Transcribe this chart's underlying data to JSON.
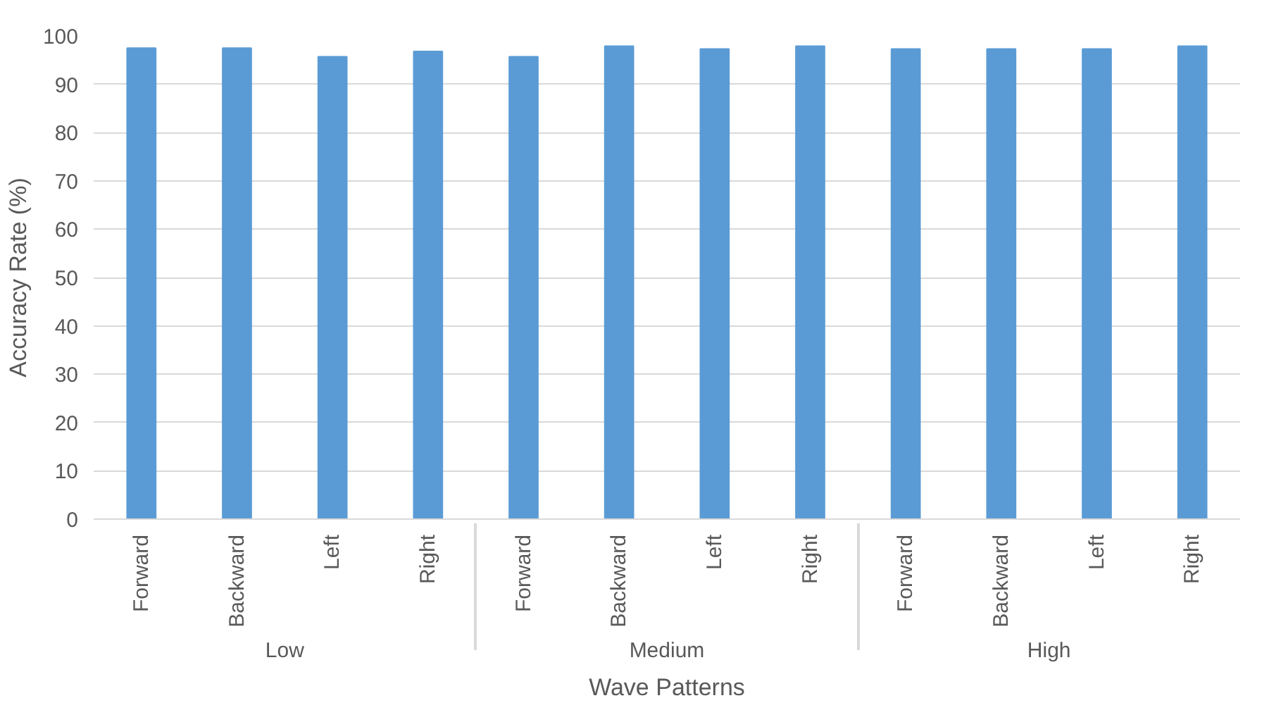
{
  "chart_data": {
    "type": "bar",
    "categories": [
      "Forward",
      "Backward",
      "Left",
      "Right",
      "Forward",
      "Backward",
      "Left",
      "Right",
      "Forward",
      "Backward",
      "Left",
      "Right"
    ],
    "values": [
      97.5,
      97.5,
      95.7,
      96.8,
      95.7,
      97.9,
      97.3,
      97.9,
      97.3,
      97.3,
      97.3,
      97.9
    ],
    "color": "#5b9bd5",
    "annotations": [
      "Low",
      "Medium",
      "High"
    ],
    "xlabel": "Wave Patterns",
    "ylabel": "Accuracy Rate (%)",
    "ylim": [
      0,
      100
    ],
    "yticks": [
      0,
      10,
      20,
      30,
      40,
      50,
      60,
      70,
      80,
      90,
      100
    ],
    "grid": "y"
  }
}
